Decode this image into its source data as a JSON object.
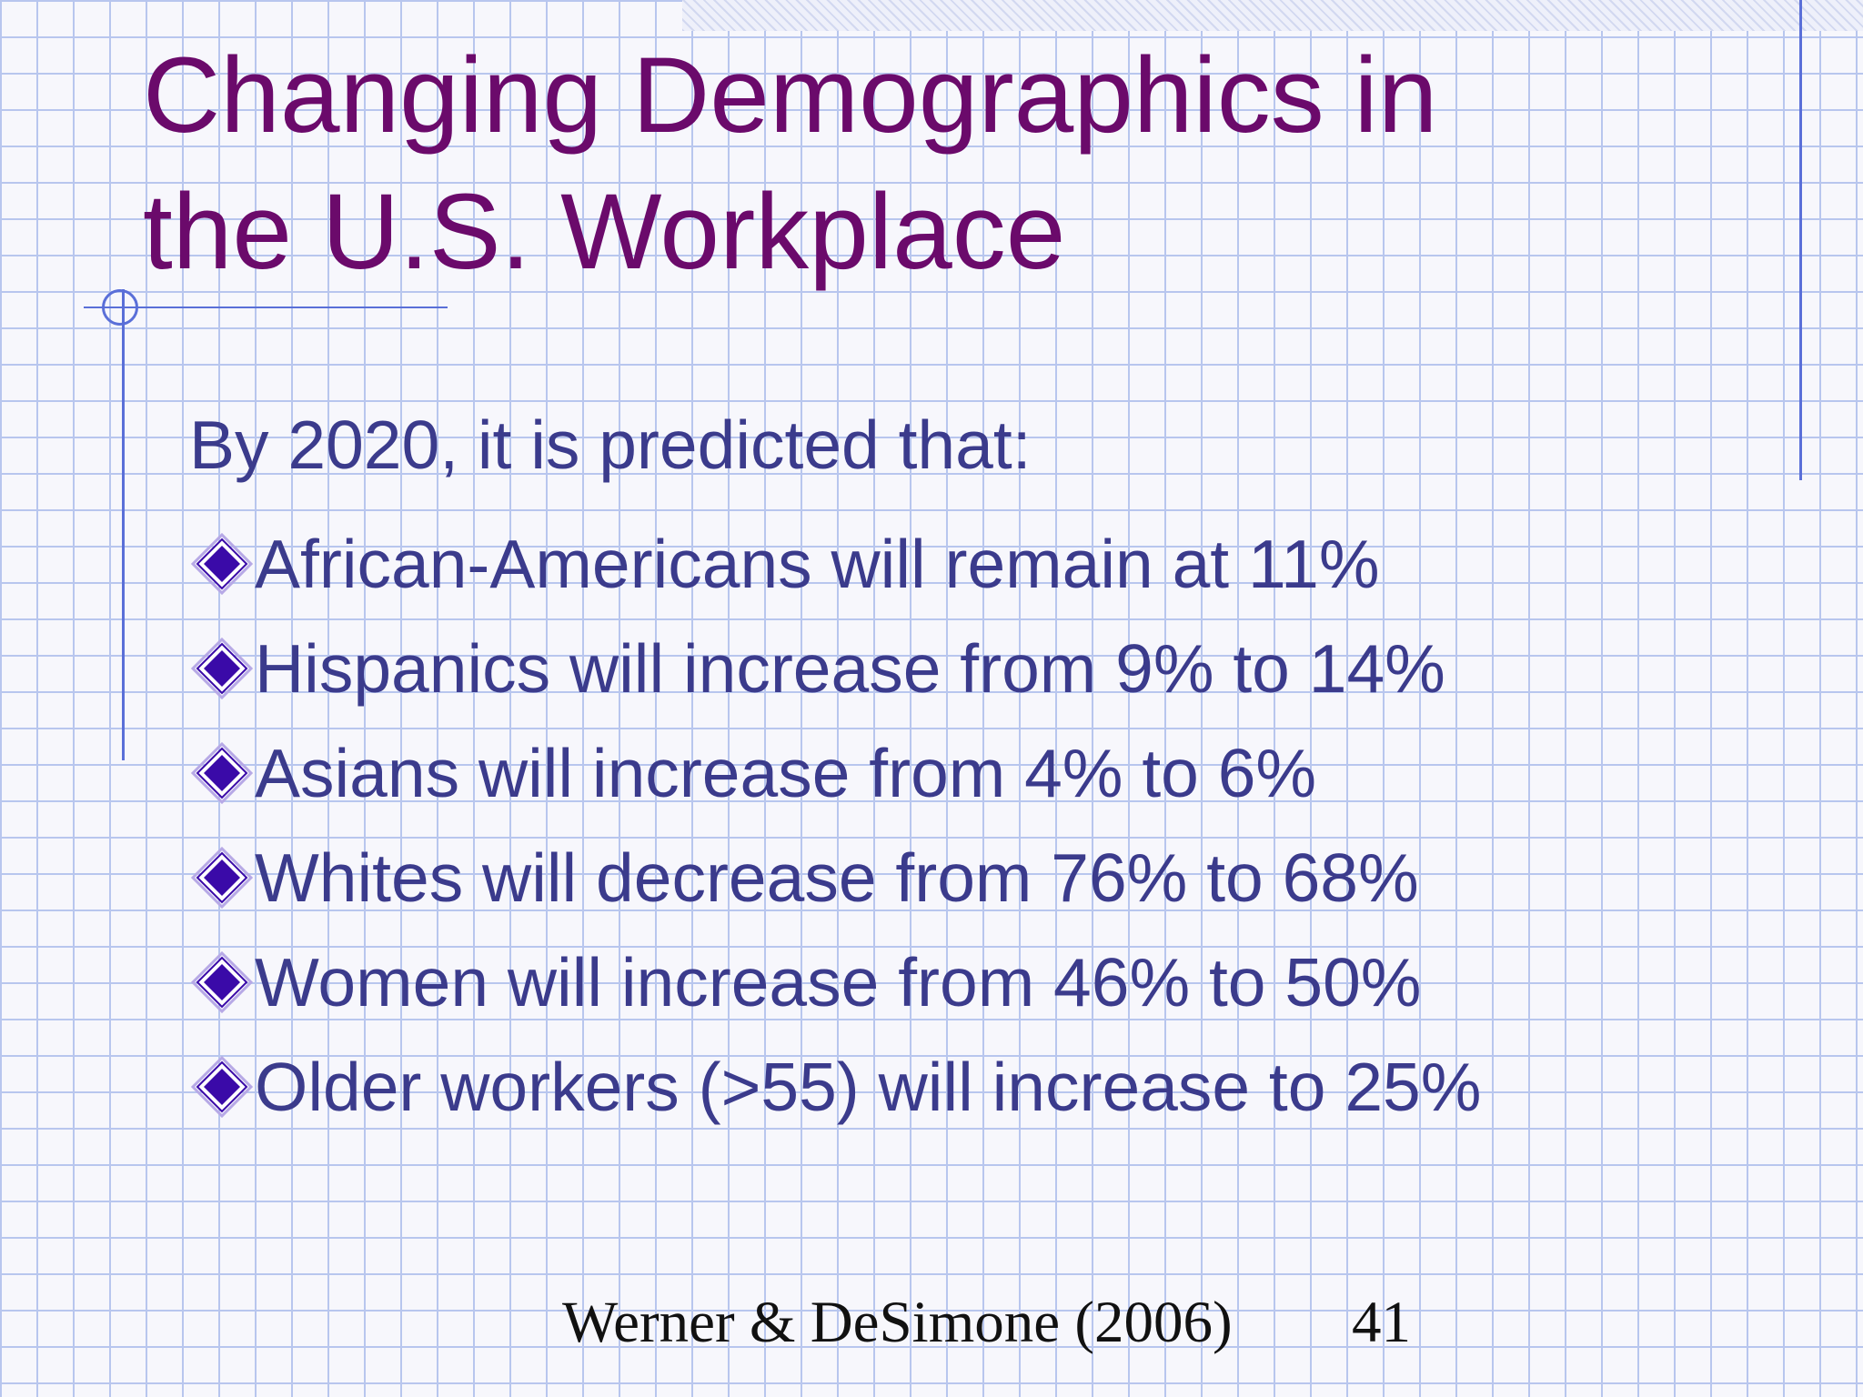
{
  "slide": {
    "title": "Changing Demographics in the U.S. Workplace",
    "intro": "By 2020, it is predicted that:",
    "bullets": [
      {
        "text": "African-Americans will remain at 11%",
        "icon": "diamond-bullet-icon"
      },
      {
        "text": "Hispanics will increase from 9% to 14%",
        "icon": "diamond-bullet-icon"
      },
      {
        "text": "Asians will increase from 4% to 6%",
        "icon": "diamond-bullet-icon"
      },
      {
        "text": "Whites will decrease from 76% to 68%",
        "icon": "diamond-bullet-icon"
      },
      {
        "text": "Women will increase from 46% to 50%",
        "icon": "diamond-bullet-icon"
      },
      {
        "text": "Older workers (>55) will increase to 25%",
        "icon": "diamond-bullet-icon"
      }
    ],
    "footer": {
      "credit": "Werner & DeSimone (2006)",
      "page_number": "41"
    }
  },
  "colors": {
    "title": "#6b0a6b",
    "body_text": "#3b3b8c",
    "bullet_fill": "#3a0aa8",
    "grid_line": "#b8c6ee",
    "accent_line": "#5a6fd8"
  }
}
